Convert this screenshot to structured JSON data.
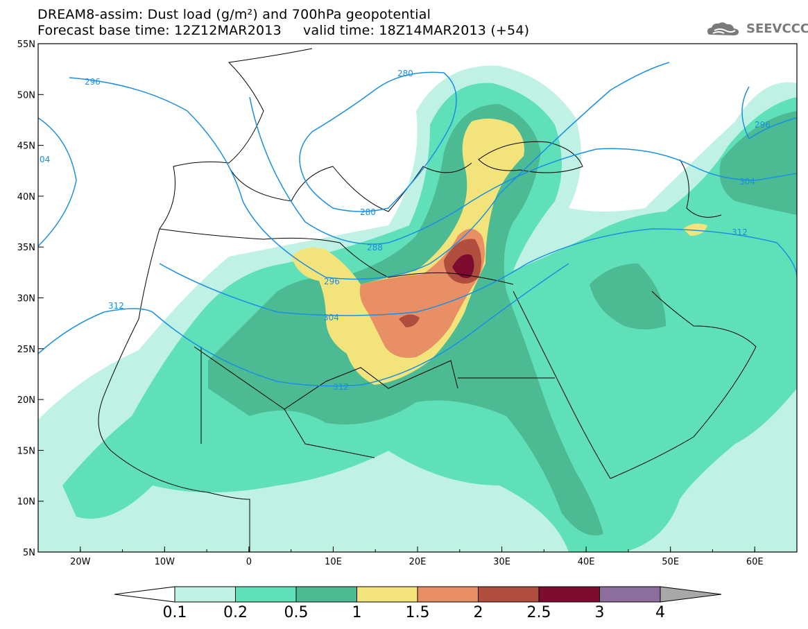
{
  "header": {
    "line1": "DREAM8-assim: Dust load (g/m²) and 700hPa geopotential",
    "line2": "Forecast base time: 12Z12MAR2013     valid time: 18Z14MAR2013 (+54)",
    "logo_text": "SEEVCCC"
  },
  "map": {
    "projection": "cylindrical equidistant",
    "lon_range": [
      -25,
      65
    ],
    "lat_range": [
      5,
      55
    ],
    "lon_ticks": [
      "20W",
      "10W",
      "0",
      "10E",
      "20E",
      "30E",
      "40E",
      "50E",
      "60E"
    ],
    "lat_ticks": [
      "55N",
      "50N",
      "45N",
      "40N",
      "35N",
      "30N",
      "25N",
      "20N",
      "15N",
      "10N",
      "5N"
    ],
    "contour_labels": [
      "296",
      "280",
      "296",
      "04",
      "304",
      "280",
      "288",
      "296",
      "304",
      "312",
      "312",
      "312"
    ],
    "geopotential_contour_color": "#1a8fe3"
  },
  "colorbar": {
    "labels": [
      "0.1",
      "0.2",
      "0.5",
      "1",
      "1.5",
      "2",
      "2.5",
      "3",
      "4"
    ],
    "colors": [
      "#bff2e4",
      "#5fe0b8",
      "#4cba92",
      "#f2e47a",
      "#e98f66",
      "#b04e3e",
      "#7e0c30",
      "#8c6d9e",
      "#a8a8a8"
    ]
  }
}
